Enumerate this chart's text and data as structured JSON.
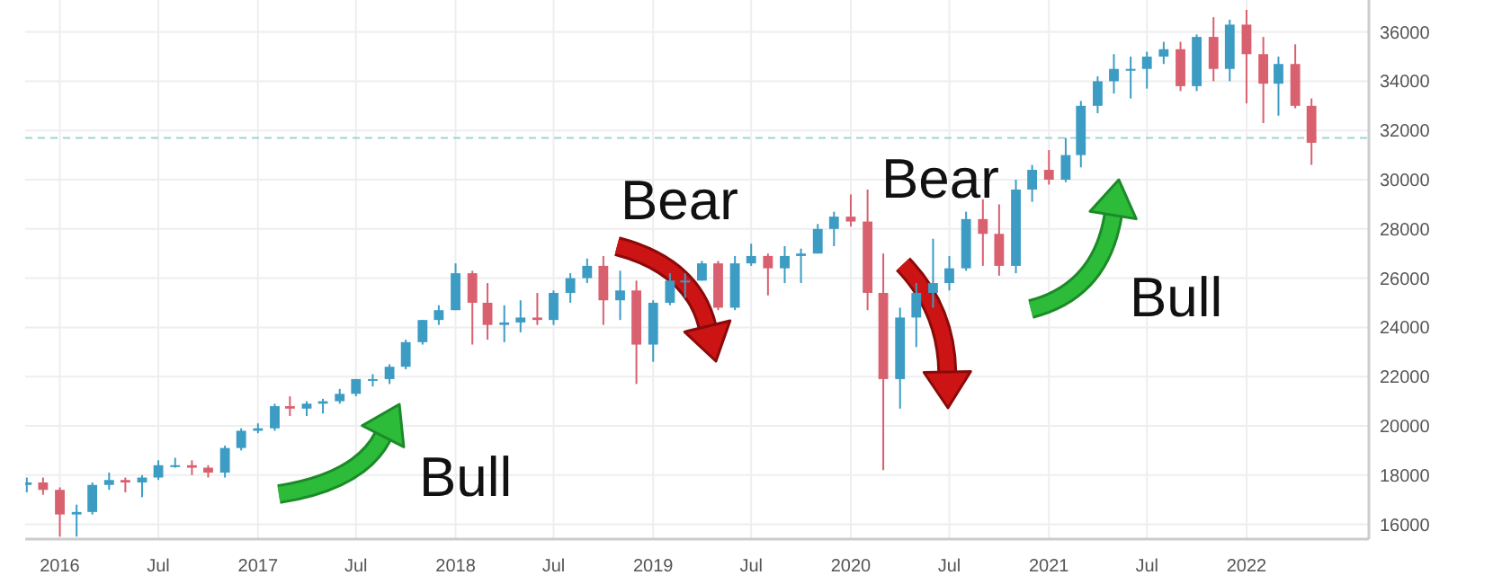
{
  "chart_data": {
    "type": "candlestick",
    "x": [
      "2015-11",
      "2015-12",
      "2016-01",
      "2016-02",
      "2016-03",
      "2016-04",
      "2016-05",
      "2016-06",
      "2016-07",
      "2016-08",
      "2016-09",
      "2016-10",
      "2016-11",
      "2016-12",
      "2017-01",
      "2017-02",
      "2017-03",
      "2017-04",
      "2017-05",
      "2017-06",
      "2017-07",
      "2017-08",
      "2017-09",
      "2017-10",
      "2017-11",
      "2017-12",
      "2018-01",
      "2018-02",
      "2018-03",
      "2018-04",
      "2018-05",
      "2018-06",
      "2018-07",
      "2018-08",
      "2018-09",
      "2018-10",
      "2018-11",
      "2018-12",
      "2019-01",
      "2019-02",
      "2019-03",
      "2019-04",
      "2019-05",
      "2019-06",
      "2019-07",
      "2019-08",
      "2019-09",
      "2019-10",
      "2019-11",
      "2019-12",
      "2020-01",
      "2020-02",
      "2020-03",
      "2020-04",
      "2020-05",
      "2020-06",
      "2020-07",
      "2020-08",
      "2020-09",
      "2020-10",
      "2020-11",
      "2020-12",
      "2021-01",
      "2021-02",
      "2021-03",
      "2021-04",
      "2021-05",
      "2021-06",
      "2021-07",
      "2021-08",
      "2021-09",
      "2021-10",
      "2021-11",
      "2021-12",
      "2022-01",
      "2022-02",
      "2022-03",
      "2022-04",
      "2022-05"
    ],
    "ohlc": [
      [
        17600,
        17900,
        17300,
        17700
      ],
      [
        17700,
        17900,
        17200,
        17400
      ],
      [
        17400,
        17500,
        15500,
        16400
      ],
      [
        16400,
        16800,
        15500,
        16500
      ],
      [
        16500,
        17700,
        16400,
        17600
      ],
      [
        17600,
        18100,
        17400,
        17800
      ],
      [
        17800,
        17900,
        17300,
        17700
      ],
      [
        17700,
        18000,
        17100,
        17900
      ],
      [
        17900,
        18600,
        17800,
        18400
      ],
      [
        18400,
        18700,
        18300,
        18400
      ],
      [
        18400,
        18600,
        18000,
        18300
      ],
      [
        18300,
        18400,
        17900,
        18100
      ],
      [
        18100,
        19200,
        17900,
        19100
      ],
      [
        19100,
        19900,
        19000,
        19800
      ],
      [
        19800,
        20100,
        19700,
        19900
      ],
      [
        19900,
        20900,
        19800,
        20800
      ],
      [
        20800,
        21200,
        20400,
        20700
      ],
      [
        20700,
        21000,
        20400,
        20900
      ],
      [
        20900,
        21100,
        20500,
        21000
      ],
      [
        21000,
        21500,
        20900,
        21300
      ],
      [
        21300,
        21900,
        21200,
        21900
      ],
      [
        21900,
        22100,
        21600,
        21900
      ],
      [
        21900,
        22500,
        21700,
        22400
      ],
      [
        22400,
        23500,
        22300,
        23400
      ],
      [
        23400,
        24300,
        23300,
        24300
      ],
      [
        24300,
        24900,
        24100,
        24700
      ],
      [
        24700,
        26600,
        24700,
        26200
      ],
      [
        26200,
        26300,
        23300,
        25000
      ],
      [
        25000,
        25800,
        23500,
        24100
      ],
      [
        24100,
        24900,
        23400,
        24200
      ],
      [
        24200,
        25100,
        23800,
        24400
      ],
      [
        24400,
        25400,
        24100,
        24300
      ],
      [
        24300,
        25500,
        24100,
        25400
      ],
      [
        25400,
        26200,
        25000,
        26000
      ],
      [
        26000,
        26800,
        25800,
        26500
      ],
      [
        26500,
        26900,
        24100,
        25100
      ],
      [
        25100,
        26300,
        24300,
        25500
      ],
      [
        25500,
        25900,
        21700,
        23300
      ],
      [
        23300,
        25100,
        22600,
        25000
      ],
      [
        25000,
        26200,
        24900,
        25900
      ],
      [
        25900,
        26200,
        25200,
        25900
      ],
      [
        25900,
        26700,
        25900,
        26600
      ],
      [
        26600,
        26700,
        24700,
        24800
      ],
      [
        24800,
        26900,
        24700,
        26600
      ],
      [
        26600,
        27400,
        26500,
        26900
      ],
      [
        26900,
        27000,
        25300,
        26400
      ],
      [
        26400,
        27300,
        25800,
        26900
      ],
      [
        26900,
        27200,
        25800,
        27000
      ],
      [
        27000,
        28200,
        27000,
        28000
      ],
      [
        28000,
        28700,
        27300,
        28500
      ],
      [
        28500,
        29400,
        28100,
        28300
      ],
      [
        28300,
        29600,
        24700,
        25400
      ],
      [
        25400,
        27000,
        18200,
        21900
      ],
      [
        21900,
        24800,
        20700,
        24400
      ],
      [
        24400,
        25800,
        23200,
        25400
      ],
      [
        25400,
        27600,
        24800,
        25800
      ],
      [
        25800,
        26900,
        25500,
        26400
      ],
      [
        26400,
        28700,
        26300,
        28400
      ],
      [
        28400,
        29200,
        26500,
        27800
      ],
      [
        27800,
        29000,
        26100,
        26500
      ],
      [
        26500,
        30000,
        26200,
        29600
      ],
      [
        29600,
        30600,
        29100,
        30400
      ],
      [
        30400,
        31200,
        29800,
        30000
      ],
      [
        30000,
        31700,
        29900,
        31000
      ],
      [
        31000,
        33200,
        30500,
        33000
      ],
      [
        33000,
        34200,
        32700,
        34000
      ],
      [
        34000,
        35100,
        33500,
        34500
      ],
      [
        34500,
        35000,
        33300,
        34500
      ],
      [
        34500,
        35200,
        33700,
        35000
      ],
      [
        35000,
        35600,
        34700,
        35300
      ],
      [
        35300,
        35600,
        33600,
        33800
      ],
      [
        33800,
        35900,
        33600,
        35800
      ],
      [
        35800,
        36600,
        34000,
        34500
      ],
      [
        34500,
        36500,
        34000,
        36300
      ],
      [
        36300,
        36900,
        33100,
        35100
      ],
      [
        35100,
        35800,
        32300,
        33900
      ],
      [
        33900,
        35000,
        32600,
        34700
      ],
      [
        34700,
        35500,
        32900,
        33000
      ],
      [
        33000,
        33300,
        30600,
        31500
      ]
    ],
    "xlim": [
      "2015-10-29",
      "2022-08-15"
    ],
    "xticks": [
      {
        "value": "2016-01-01",
        "label": "2016"
      },
      {
        "value": "2016-07-01",
        "label": "Jul"
      },
      {
        "value": "2017-01-01",
        "label": "2017"
      },
      {
        "value": "2017-07-01",
        "label": "Jul"
      },
      {
        "value": "2018-01-01",
        "label": "2018"
      },
      {
        "value": "2018-07-01",
        "label": "Jul"
      },
      {
        "value": "2019-01-01",
        "label": "2019"
      },
      {
        "value": "2019-07-01",
        "label": "Jul"
      },
      {
        "value": "2020-01-01",
        "label": "2020"
      },
      {
        "value": "2020-07-01",
        "label": "Jul"
      },
      {
        "value": "2021-01-01",
        "label": "2021"
      },
      {
        "value": "2021-07-01",
        "label": "Jul"
      },
      {
        "value": "2022-01-01",
        "label": "2022"
      }
    ],
    "ylim": [
      15400,
      37300
    ],
    "yticks": [
      16000,
      18000,
      20000,
      22000,
      24000,
      26000,
      28000,
      30000,
      32000,
      34000,
      36000
    ],
    "grid": true,
    "ref_lines": [
      {
        "axis": "y",
        "value": 31700,
        "label": null,
        "color": "#9fd3d6",
        "line_style": "dashed"
      }
    ],
    "annotations": [
      "Bull",
      "Bear",
      "Bear",
      "Bull"
    ]
  }
}
